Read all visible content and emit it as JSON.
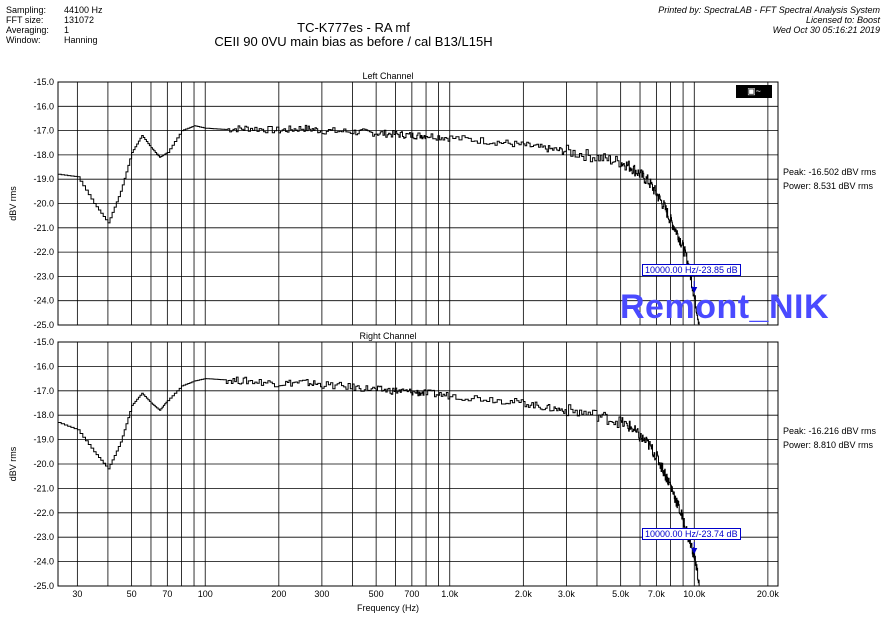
{
  "header": {
    "left_keys": [
      "Sampling:",
      "FFT size:",
      "Averaging:",
      "Window:"
    ],
    "left_vals": [
      "44100 Hz",
      "131072",
      "1",
      "Hanning"
    ],
    "right_lines": [
      "Printed by: SpectraLAB - FFT Spectral Analysis System",
      "Licensed to: Boost",
      "Wed Oct 30 05:16:21 2019"
    ],
    "title1": "TC-K777es - RA mf",
    "title2": "CEII 90  0VU main bias as before / cal B13/L15H"
  },
  "watermark": "Remont_NIK",
  "tool_icon": "spectrum-tool-icon",
  "chart_data": [
    {
      "type": "line",
      "title": "Left Channel",
      "ylabel": "dBV rms",
      "xlabel": "",
      "xscale": "log",
      "xlim": [
        25,
        22000
      ],
      "ylim": [
        -25.0,
        -15.0
      ],
      "y_ticks": [
        "-15.0",
        "-16.0",
        "-17.0",
        "-18.0",
        "-19.0",
        "-20.0",
        "-21.0",
        "-22.0",
        "-23.0",
        "-24.0",
        "-25.0"
      ],
      "x": [
        25,
        30,
        35,
        40,
        45,
        50,
        55,
        60,
        65,
        70,
        80,
        90,
        100,
        120,
        150,
        200,
        250,
        300,
        400,
        500,
        600,
        700,
        800,
        1000,
        1500,
        2000,
        2500,
        3000,
        4000,
        5000,
        5500,
        6000,
        6500,
        7000,
        7500,
        8000,
        8500,
        9000,
        9500,
        10000,
        10500
      ],
      "values": [
        -18.8,
        -18.9,
        -20.0,
        -20.8,
        -19.5,
        -17.9,
        -17.2,
        -17.7,
        -18.1,
        -17.9,
        -17.0,
        -16.8,
        -16.9,
        -16.95,
        -16.9,
        -17.0,
        -16.9,
        -17.0,
        -17.05,
        -17.1,
        -17.15,
        -17.2,
        -17.2,
        -17.3,
        -17.45,
        -17.6,
        -17.75,
        -17.85,
        -18.1,
        -18.3,
        -18.5,
        -18.8,
        -19.1,
        -19.6,
        -20.1,
        -20.7,
        -21.2,
        -21.8,
        -22.6,
        -23.85,
        -25.0
      ],
      "peak": "Peak: -16.502 dBV rms",
      "power": "Power: 8.531 dBV rms",
      "marker": "10000.00 Hz/-23.85 dB"
    },
    {
      "type": "line",
      "title": "Right Channel",
      "ylabel": "dBV rms",
      "xlabel": "Frequency (Hz)",
      "xscale": "log",
      "xlim": [
        25,
        22000
      ],
      "ylim": [
        -25.0,
        -15.0
      ],
      "y_ticks": [
        "-15.0",
        "-16.0",
        "-17.0",
        "-18.0",
        "-19.0",
        "-20.0",
        "-21.0",
        "-22.0",
        "-23.0",
        "-24.0",
        "-25.0"
      ],
      "x_ticks": [
        "30",
        "50",
        "70",
        "100",
        "200",
        "300",
        "500",
        "700",
        "1.0k",
        "2.0k",
        "3.0k",
        "5.0k",
        "7.0k",
        "10.0k",
        "20.0k"
      ],
      "x_tick_values": [
        30,
        50,
        70,
        100,
        200,
        300,
        500,
        700,
        1000,
        2000,
        3000,
        5000,
        7000,
        10000,
        20000
      ],
      "x": [
        25,
        30,
        35,
        40,
        45,
        50,
        55,
        60,
        65,
        70,
        80,
        90,
        100,
        120,
        150,
        200,
        250,
        300,
        400,
        500,
        600,
        700,
        800,
        1000,
        1500,
        2000,
        2500,
        3000,
        4000,
        5000,
        5500,
        6000,
        6500,
        7000,
        7500,
        8000,
        8500,
        9000,
        9500,
        10000,
        10500
      ],
      "values": [
        -18.3,
        -18.6,
        -19.5,
        -20.2,
        -19.1,
        -17.6,
        -17.1,
        -17.5,
        -17.8,
        -17.4,
        -16.8,
        -16.6,
        -16.5,
        -16.55,
        -16.6,
        -16.7,
        -16.65,
        -16.75,
        -16.85,
        -16.95,
        -17.0,
        -17.05,
        -17.1,
        -17.2,
        -17.35,
        -17.5,
        -17.7,
        -17.8,
        -18.0,
        -18.3,
        -18.5,
        -18.9,
        -19.2,
        -19.7,
        -20.3,
        -20.9,
        -21.6,
        -22.3,
        -23.1,
        -23.74,
        -25.0
      ],
      "peak": "Peak: -16.216 dBV rms",
      "power": "Power: 8.810 dBV rms",
      "marker": "10000.00 Hz/-23.74 dB"
    }
  ]
}
